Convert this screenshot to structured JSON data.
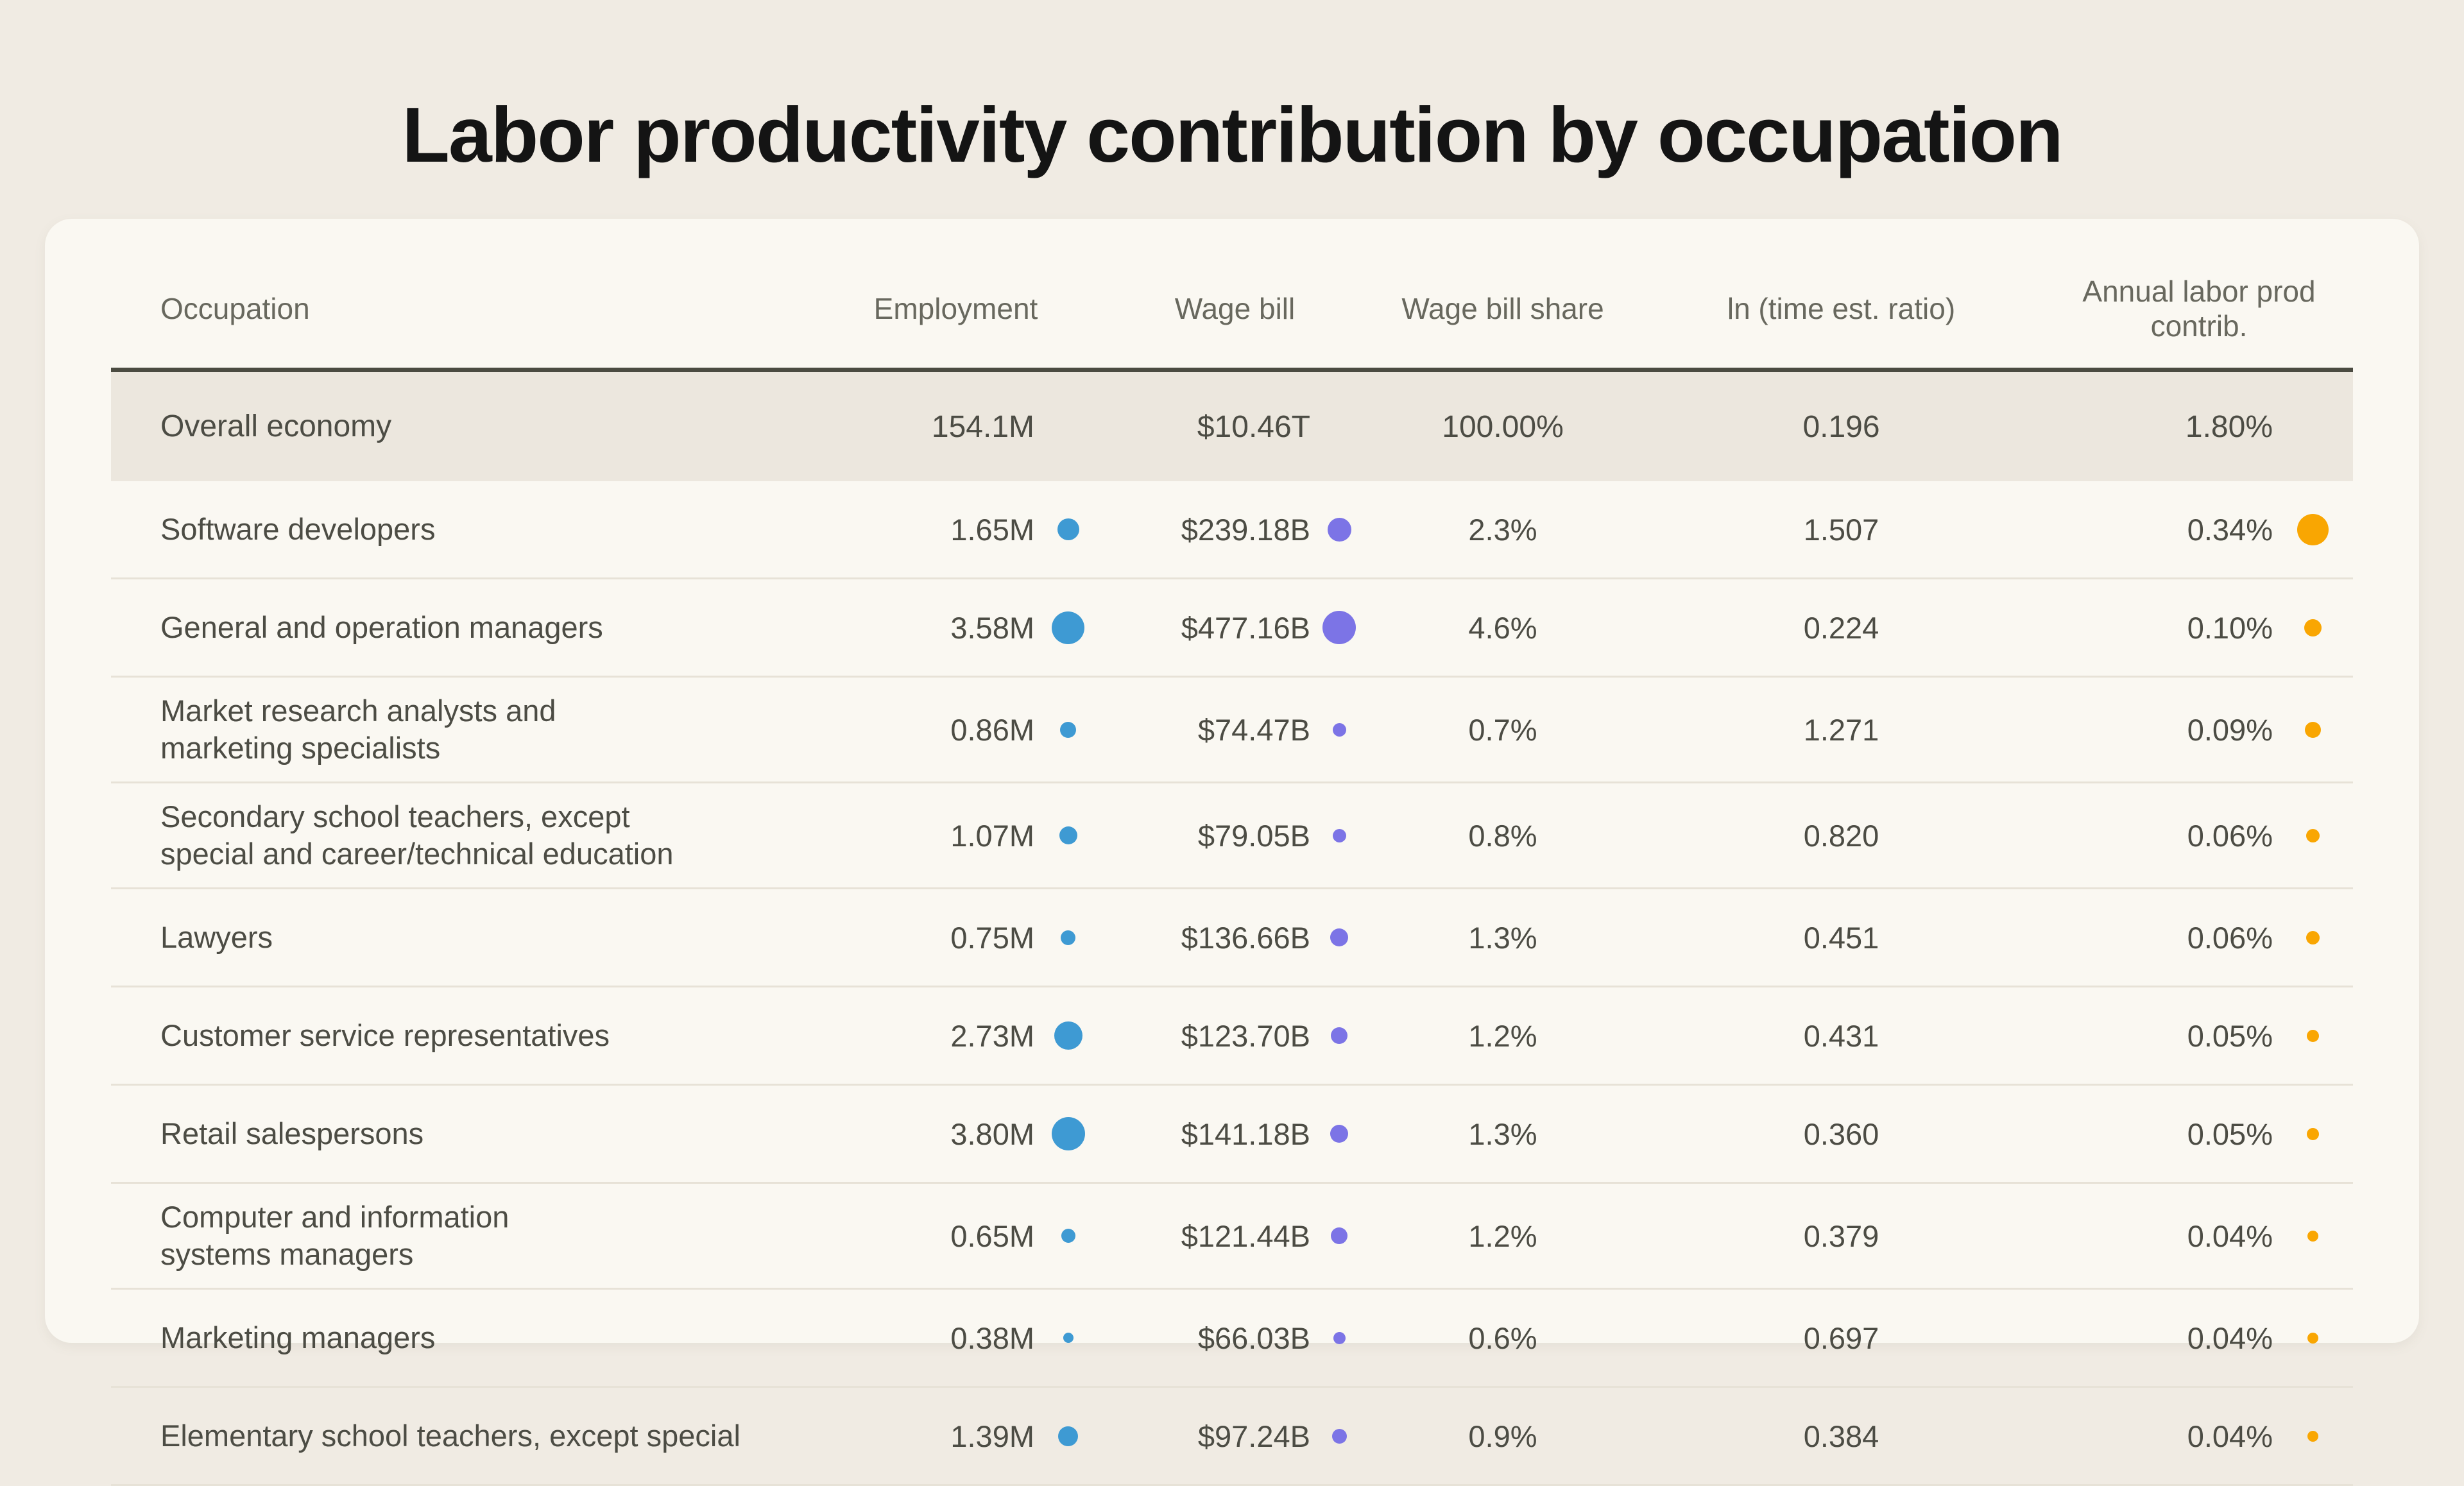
{
  "title": "Labor productivity contribution by occupation",
  "colors": {
    "page_background": "#F0EBE3",
    "card_background": "#FAF8F2",
    "summary_band": "#ECE7DE",
    "header_rule": "#4B4B41",
    "row_separator": "#E7E2D7",
    "title_text": "#141414",
    "header_text": "#68685E",
    "body_text": "#4C4C44"
  },
  "chart_data": {
    "type": "table",
    "title": "Labor productivity contribution by occupation",
    "columns": [
      "Occupation",
      "Employment",
      "Wage bill",
      "Wage bill share",
      "ln (time est. ratio)",
      "Annual labor prod contrib."
    ],
    "summary": {
      "occupation": "Overall economy",
      "employment": "154.1M",
      "wage_bill": "$10.46T",
      "share": "100.00%",
      "ratio": "0.196",
      "contrib": "1.80%"
    },
    "rows": [
      {
        "occupation": "Software developers",
        "employment": "1.65M",
        "employment_m": 1.65,
        "wage_bill": "$239.18B",
        "wage_bill_b": 239.18,
        "share": "2.3%",
        "ratio": "1.507",
        "contrib": "0.34%",
        "contrib_pct": 0.34
      },
      {
        "occupation": "General and operation managers",
        "employment": "3.58M",
        "employment_m": 3.58,
        "wage_bill": "$477.16B",
        "wage_bill_b": 477.16,
        "share": "4.6%",
        "ratio": "0.224",
        "contrib": "0.10%",
        "contrib_pct": 0.1
      },
      {
        "occupation": "Market research analysts and\nmarketing specialists",
        "employment": "0.86M",
        "employment_m": 0.86,
        "wage_bill": "$74.47B",
        "wage_bill_b": 74.47,
        "share": "0.7%",
        "ratio": "1.271",
        "contrib": "0.09%",
        "contrib_pct": 0.09
      },
      {
        "occupation": "Secondary school teachers, except\nspecial and career/technical education",
        "employment": "1.07M",
        "employment_m": 1.07,
        "wage_bill": "$79.05B",
        "wage_bill_b": 79.05,
        "share": "0.8%",
        "ratio": "0.820",
        "contrib": "0.06%",
        "contrib_pct": 0.06
      },
      {
        "occupation": "Lawyers",
        "employment": "0.75M",
        "employment_m": 0.75,
        "wage_bill": "$136.66B",
        "wage_bill_b": 136.66,
        "share": "1.3%",
        "ratio": "0.451",
        "contrib": "0.06%",
        "contrib_pct": 0.06
      },
      {
        "occupation": "Customer service representatives",
        "employment": "2.73M",
        "employment_m": 2.73,
        "wage_bill": "$123.70B",
        "wage_bill_b": 123.7,
        "share": "1.2%",
        "ratio": "0.431",
        "contrib": "0.05%",
        "contrib_pct": 0.05
      },
      {
        "occupation": "Retail salespersons",
        "employment": "3.80M",
        "employment_m": 3.8,
        "wage_bill": "$141.18B",
        "wage_bill_b": 141.18,
        "share": "1.3%",
        "ratio": "0.360",
        "contrib": "0.05%",
        "contrib_pct": 0.05
      },
      {
        "occupation": "Computer and information\nsystems managers",
        "employment": "0.65M",
        "employment_m": 0.65,
        "wage_bill": "$121.44B",
        "wage_bill_b": 121.44,
        "share": "1.2%",
        "ratio": "0.379",
        "contrib": "0.04%",
        "contrib_pct": 0.04
      },
      {
        "occupation": "Marketing managers",
        "employment": "0.38M",
        "employment_m": 0.38,
        "wage_bill": "$66.03B",
        "wage_bill_b": 66.03,
        "share": "0.6%",
        "ratio": "0.697",
        "contrib": "0.04%",
        "contrib_pct": 0.04
      },
      {
        "occupation": "Elementary school teachers, except special",
        "employment": "1.39M",
        "employment_m": 1.39,
        "wage_bill": "$97.24B",
        "wage_bill_b": 97.24,
        "share": "0.9%",
        "ratio": "0.384",
        "contrib": "0.04%",
        "contrib_pct": 0.04
      }
    ],
    "dot_colors": {
      "employment": "#3E9AD3",
      "wage_bill": "#7C74E6",
      "contrib": "#F9A602"
    },
    "dot_scale": {
      "employment": 26.7,
      "wage_bill": 2.38,
      "contrib": 84.0
    },
    "layout_hints": {
      "dot_size_rule": "diameter_px = dot_scale[column] * sqrt(numeric_value)",
      "summary_row_highlighted": true,
      "grid": "horizontal separators only"
    }
  }
}
